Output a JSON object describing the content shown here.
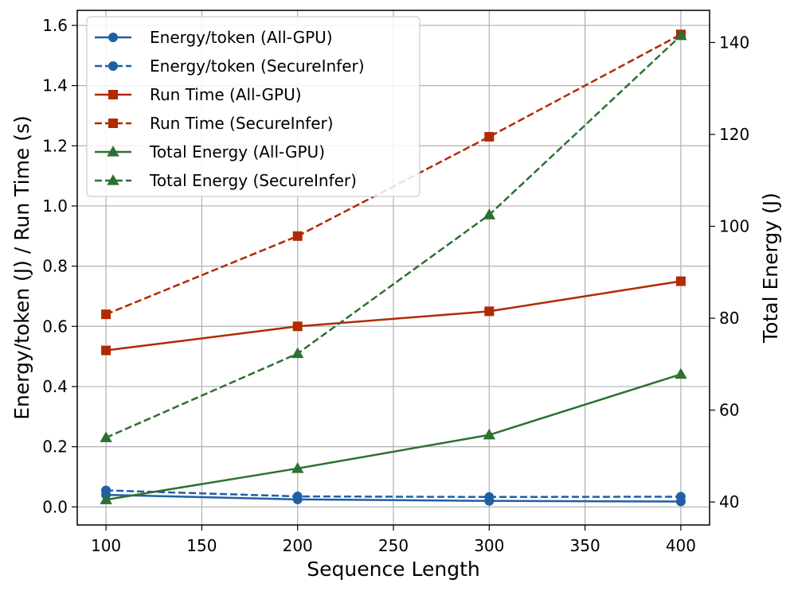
{
  "chart_data": {
    "type": "line",
    "xlabel": "Sequence Length",
    "ylabel_left": "Energy/token (J) / Run Time (s)",
    "ylabel_right": "Total Energy (J)",
    "x": [
      100,
      200,
      300,
      400
    ],
    "xlim": [
      85,
      415
    ],
    "ylim_left": [
      -0.06,
      1.65
    ],
    "ylim_right": [
      35,
      147
    ],
    "x_ticks": [
      100,
      150,
      200,
      250,
      300,
      350,
      400
    ],
    "y_ticks_left": [
      "0.0",
      "0.2",
      "0.4",
      "0.6",
      "0.8",
      "1.0",
      "1.2",
      "1.4",
      "1.6"
    ],
    "y_ticks_right": [
      "40",
      "60",
      "80",
      "100",
      "120",
      "140"
    ],
    "grid": true,
    "legend_position": "top-left",
    "series": [
      {
        "name": "Energy/token (All-GPU)",
        "axis": "left",
        "color": "#1f5fa6",
        "style": "solid",
        "marker": "circle",
        "values": [
          0.04,
          0.025,
          0.02,
          0.018
        ]
      },
      {
        "name": "Energy/token (SecureInfer)",
        "axis": "left",
        "color": "#1f5fa6",
        "style": "dashed",
        "marker": "circle",
        "values": [
          0.055,
          0.035,
          0.033,
          0.034
        ]
      },
      {
        "name": "Run Time (All-GPU)",
        "axis": "left",
        "color": "#b02a02",
        "style": "solid",
        "marker": "square",
        "values": [
          0.52,
          0.6,
          0.65,
          0.75
        ]
      },
      {
        "name": "Run Time (SecureInfer)",
        "axis": "left",
        "color": "#b02a02",
        "style": "dashed",
        "marker": "square",
        "values": [
          0.64,
          0.9,
          1.23,
          1.57
        ]
      },
      {
        "name": "Total Energy (All-GPU)",
        "axis": "right",
        "color": "#2e7031",
        "style": "solid",
        "marker": "triangle",
        "values": [
          40.5,
          47.3,
          54.6,
          67.8
        ]
      },
      {
        "name": "Total Energy (SecureInfer)",
        "axis": "right",
        "color": "#2e7031",
        "style": "dashed",
        "marker": "triangle",
        "values": [
          54,
          72.3,
          102.5,
          141.5
        ]
      }
    ]
  }
}
